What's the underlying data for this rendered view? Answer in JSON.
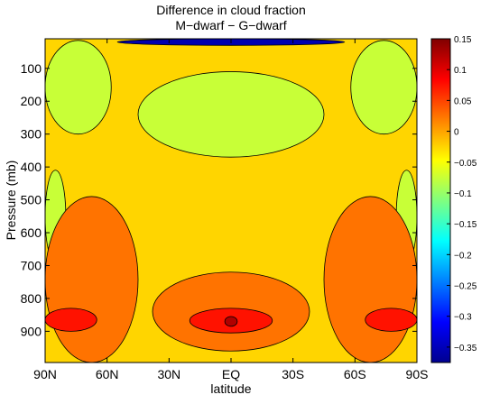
{
  "chart_data": {
    "type": "heatmap",
    "title": "Difference in cloud fraction",
    "subtitle": "M−dwarf − G−dwarf",
    "xlabel": "latitude",
    "ylabel": "Pressure (mb)",
    "x_ticks": [
      "90N",
      "60N",
      "30N",
      "EQ",
      "30S",
      "60S",
      "90S"
    ],
    "x_tick_values": [
      90,
      60,
      30,
      0,
      -30,
      -60,
      -90
    ],
    "xlim": [
      90,
      -90
    ],
    "y_ticks": [
      "100",
      "200",
      "300",
      "400",
      "500",
      "600",
      "700",
      "800",
      "900"
    ],
    "y_tick_values": [
      100,
      200,
      300,
      400,
      500,
      600,
      700,
      800,
      900
    ],
    "ylim": [
      10,
      995
    ],
    "y_reversed": true,
    "colorbar": {
      "ticks": [
        "0.15",
        "0.1",
        "0.05",
        "0",
        "−0.05",
        "−0.1",
        "−0.15",
        "−0.2",
        "−0.25",
        "−0.3",
        "−0.35"
      ],
      "tick_values": [
        0.15,
        0.1,
        0.05,
        0,
        -0.05,
        -0.1,
        -0.15,
        -0.2,
        -0.25,
        -0.3,
        -0.35
      ],
      "range": [
        -0.375,
        0.15
      ],
      "colormap": "jet"
    },
    "background_value": -0.025,
    "regions": [
      {
        "label": "upper stratosphere deep decrease (EQ band)",
        "value": -0.35,
        "lat": [
          55,
          -55
        ],
        "p": [
          10,
          30
        ]
      },
      {
        "label": "NH high-latitude decrease",
        "value": -0.075,
        "lat": [
          90,
          58
        ],
        "p": [
          15,
          300
        ]
      },
      {
        "label": "SH high-latitude decrease",
        "value": -0.075,
        "lat": [
          -58,
          -90
        ],
        "p": [
          15,
          300
        ]
      },
      {
        "label": "NH mid-troposphere decrease",
        "value": -0.075,
        "lat": [
          90,
          80
        ],
        "p": [
          410,
          690
        ]
      },
      {
        "label": "SH mid-troposphere decrease",
        "value": -0.075,
        "lat": [
          -80,
          -90
        ],
        "p": [
          410,
          690
        ]
      },
      {
        "label": "tropical upper decrease arc",
        "value": -0.075,
        "lat": [
          45,
          -45
        ],
        "p": [
          110,
          370
        ]
      },
      {
        "label": "NH lower increase",
        "value": 0.025,
        "lat": [
          90,
          45
        ],
        "p": [
          490,
          995
        ]
      },
      {
        "label": "SH lower increase",
        "value": 0.025,
        "lat": [
          -45,
          -90
        ],
        "p": [
          490,
          995
        ]
      },
      {
        "label": "tropical lower increase",
        "value": 0.025,
        "lat": [
          38,
          -38
        ],
        "p": [
          720,
          960
        ]
      },
      {
        "label": "NH boundary-layer increase",
        "value": 0.075,
        "lat": [
          90,
          65
        ],
        "p": [
          830,
          900
        ]
      },
      {
        "label": "SH boundary-layer increase",
        "value": 0.075,
        "lat": [
          -65,
          -90
        ],
        "p": [
          830,
          900
        ]
      },
      {
        "label": "equatorial boundary-layer increase",
        "value": 0.075,
        "lat": [
          20,
          -20
        ],
        "p": [
          830,
          905
        ]
      },
      {
        "label": "equatorial maximum",
        "value": 0.125,
        "lat": [
          3,
          -3
        ],
        "p": [
          855,
          885
        ]
      }
    ]
  }
}
